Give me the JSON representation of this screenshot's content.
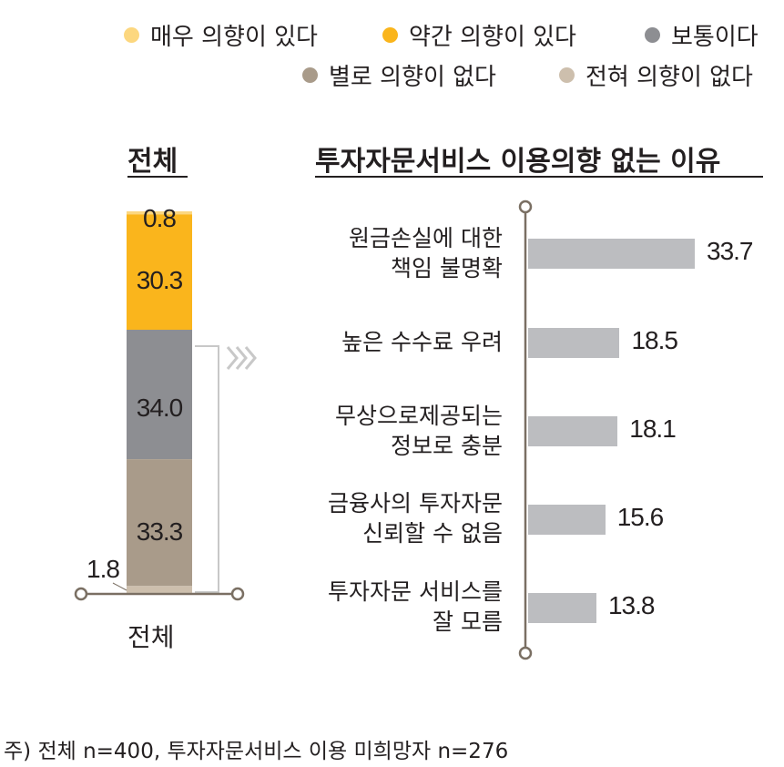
{
  "colors": {
    "very_likely": "#fcd77f",
    "somewhat_likely": "#fab51c",
    "neutral": "#8d8e92",
    "not_very": "#a99b8a",
    "not_at_all": "#cdbfad",
    "reason_bar": "#bcbdc0",
    "axis": "#7a6f63"
  },
  "legend": [
    {
      "label": "매우 의향이 있다",
      "color": "#fcd77f"
    },
    {
      "label": "약간 의향이 있다",
      "color": "#fab51c"
    },
    {
      "label": "보통이다",
      "color": "#8d8e92"
    },
    {
      "label": "별로 의향이 없다",
      "color": "#a99b8a"
    },
    {
      "label": "전혀 의향이 없다",
      "color": "#cdbfad"
    }
  ],
  "left_heading": "전체",
  "right_heading": "투자자문서비스 이용의향 없는 이유",
  "stack_axis_label": "전체",
  "footnote": "주) 전체 n=400, 투자자문서비스 이용 미희망자 n=276",
  "chart_data": [
    {
      "type": "bar",
      "stacked": true,
      "title": "전체",
      "categories": [
        "전체"
      ],
      "series": [
        {
          "name": "매우 의향이 있다",
          "values": [
            0.8
          ],
          "label": "0.8"
        },
        {
          "name": "약간 의향이 있다",
          "values": [
            30.3
          ],
          "label": "30.3"
        },
        {
          "name": "보통이다",
          "values": [
            34.0
          ],
          "label": "34.0"
        },
        {
          "name": "별로 의향이 없다",
          "values": [
            33.3
          ],
          "label": "33.3"
        },
        {
          "name": "전혀 의향이 없다",
          "values": [
            1.8
          ],
          "label": "1.8"
        }
      ]
    },
    {
      "type": "bar",
      "orientation": "horizontal",
      "title": "투자자문서비스 이용의향 없는 이유",
      "categories": [
        [
          "원금손실에 대한",
          "책임 불명확"
        ],
        [
          "높은 수수료 우려"
        ],
        [
          "무상으로제공되는",
          "정보로 충분"
        ],
        [
          "금융사의 투자자문",
          "신뢰할 수 없음"
        ],
        [
          "투자자문 서비스를",
          "잘 모름"
        ]
      ],
      "values": [
        33.7,
        18.5,
        18.1,
        15.6,
        13.8
      ],
      "value_labels": [
        "33.7",
        "18.5",
        "18.1",
        "15.6",
        "13.8"
      ]
    }
  ]
}
